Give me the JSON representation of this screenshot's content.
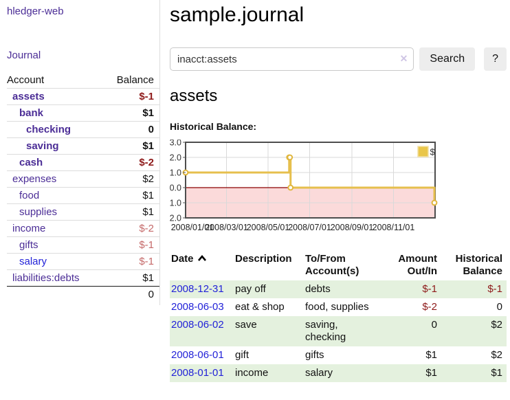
{
  "colors": {
    "link_purple": "#4b2d96",
    "link_blue": "#2222d8",
    "negative_strong": "#8e1a1a",
    "negative_soft": "#c56a6a",
    "row_stripe_green": "#e4f1de",
    "chart_gold": "#e6bf4d",
    "chart_negative_region": "#fbdada",
    "chart_zero_line": "#8b0000"
  },
  "sidebar": {
    "brand": "hledger-web",
    "journal_link": "Journal",
    "table": {
      "headers": {
        "account": "Account",
        "balance": "Balance"
      },
      "rows": [
        {
          "label": "assets",
          "balance": "$-1",
          "level": 1,
          "bold": true,
          "bal": "neg-strong",
          "link": "visited"
        },
        {
          "label": "bank",
          "balance": "$1",
          "level": 2,
          "bold": true,
          "bal": "pos",
          "link": "visited"
        },
        {
          "label": "checking",
          "balance": "0",
          "level": 3,
          "bold": true,
          "bal": "pos",
          "link": "visited"
        },
        {
          "label": "saving",
          "balance": "$1",
          "level": 3,
          "bold": true,
          "bal": "pos",
          "link": "visited"
        },
        {
          "label": "cash",
          "balance": "$-2",
          "level": 2,
          "bold": true,
          "bal": "neg-strong",
          "link": "visited"
        },
        {
          "label": "expenses",
          "balance": "$2",
          "level": 1,
          "bold": false,
          "bal": "pos",
          "link": "visited"
        },
        {
          "label": "food",
          "balance": "$1",
          "level": 2,
          "bold": false,
          "bal": "pos",
          "link": "visited"
        },
        {
          "label": "supplies",
          "balance": "$1",
          "level": 2,
          "bold": false,
          "bal": "pos",
          "link": "visited"
        },
        {
          "label": "income",
          "balance": "$-2",
          "level": 1,
          "bold": false,
          "bal": "neg-soft",
          "link": "visited"
        },
        {
          "label": "gifts",
          "balance": "$-1",
          "level": 2,
          "bold": false,
          "bal": "neg-soft",
          "link": "visited"
        },
        {
          "label": "salary",
          "balance": "$-1",
          "level": 2,
          "bold": false,
          "bal": "neg-soft",
          "link": "new"
        },
        {
          "label": "liabilities:debts",
          "balance": "$1",
          "level": 1,
          "bold": false,
          "bal": "pos",
          "link": "visited"
        }
      ],
      "total": "0"
    }
  },
  "main": {
    "title": "sample.journal",
    "search": {
      "value": "inacct:assets",
      "clear_icon": "✕",
      "search_label": "Search",
      "help_label": "?"
    },
    "account_heading": "assets",
    "chart_heading": "Historical Balance:"
  },
  "chart_data": {
    "type": "line",
    "step": true,
    "title": "Historical Balance",
    "xlabel": "",
    "ylabel": "",
    "ylim": [
      -2,
      3
    ],
    "yticks": [
      3.0,
      2.0,
      1.0,
      0.0,
      -1.0,
      -2.0
    ],
    "xticks": [
      "2008/01/01",
      "2008/03/01",
      "2008/05/01",
      "2008/07/01",
      "2008/09/01",
      "2008/11/01"
    ],
    "grid": true,
    "legend": {
      "label": "$",
      "position": "top-right"
    },
    "series": [
      {
        "name": "$",
        "color": "#e6bf4d",
        "marker_stroke": "#e0b63c",
        "points": [
          [
            "2008-01-01",
            1
          ],
          [
            "2008-06-01",
            2
          ],
          [
            "2008-06-02",
            2
          ],
          [
            "2008-06-03",
            0
          ],
          [
            "2008-12-31",
            -1
          ]
        ]
      }
    ],
    "negative_region_color": "#fbdada",
    "zero_line_color": "#8b0000"
  },
  "transactions": {
    "headers": {
      "date": "Date",
      "description": "Description",
      "tofrom": "To/From Account(s)",
      "amount": "Amount Out/In",
      "balance": "Historical Balance"
    },
    "rows": [
      {
        "date": "2008-12-31",
        "description": "pay off",
        "tofrom": "debts",
        "amount": "$-1",
        "amount_neg": true,
        "balance": "$-1",
        "balance_neg": true
      },
      {
        "date": "2008-06-03",
        "description": "eat & shop",
        "tofrom": "food, supplies",
        "amount": "$-2",
        "amount_neg": true,
        "balance": "0",
        "balance_neg": false
      },
      {
        "date": "2008-06-02",
        "description": "save",
        "tofrom": "saving, checking",
        "amount": "0",
        "amount_neg": false,
        "balance": "$2",
        "balance_neg": false
      },
      {
        "date": "2008-06-01",
        "description": "gift",
        "tofrom": "gifts",
        "amount": "$1",
        "amount_neg": false,
        "balance": "$2",
        "balance_neg": false
      },
      {
        "date": "2008-01-01",
        "description": "income",
        "tofrom": "salary",
        "amount": "$1",
        "amount_neg": false,
        "balance": "$1",
        "balance_neg": false
      }
    ]
  }
}
